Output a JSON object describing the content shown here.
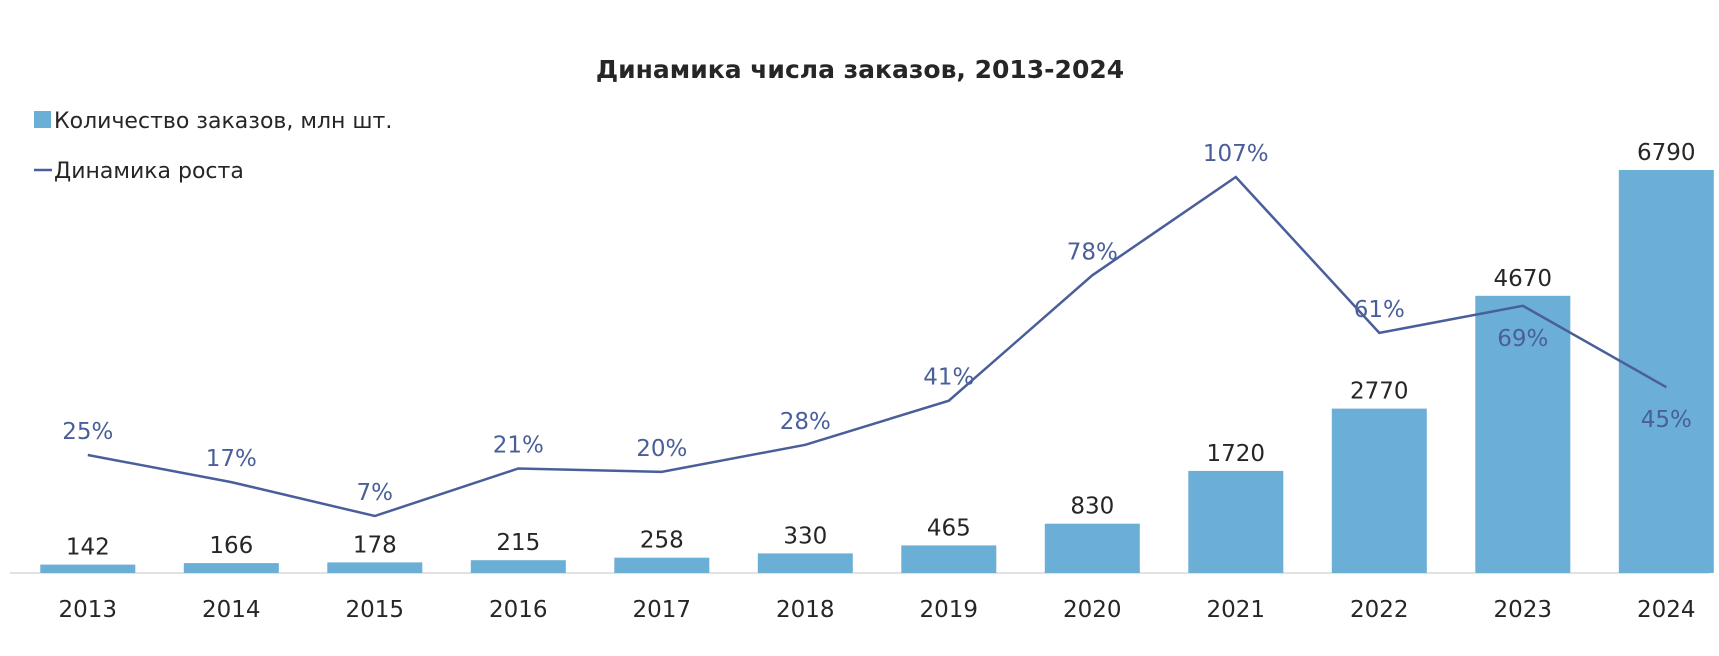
{
  "chart_data": {
    "type": "bar",
    "title": "Динамика числа заказов, 2013-2024",
    "xlabel": "",
    "ylabel": "",
    "grid": false,
    "legend_position": "top-left",
    "categories": [
      "2013",
      "2014",
      "2015",
      "2016",
      "2017",
      "2018",
      "2019",
      "2020",
      "2021",
      "2022",
      "2023",
      "2024"
    ],
    "bar_series": {
      "name": "Количество заказов, млн шт.",
      "values": [
        142,
        166,
        178,
        215,
        258,
        330,
        465,
        830,
        1720,
        2770,
        4670,
        6790
      ],
      "labels": [
        "142",
        "166",
        "178",
        "215",
        "258",
        "330",
        "465",
        "830",
        "1720",
        "2770",
        "4670",
        "6790"
      ],
      "color": "#6baed6",
      "ylim": [
        0,
        6790
      ]
    },
    "line_series": {
      "name": "Динамика роста",
      "values": [
        25,
        17,
        7,
        21,
        20,
        28,
        41,
        78,
        107,
        61,
        69,
        45
      ],
      "labels": [
        "25%",
        "17%",
        "7%",
        "21%",
        "20%",
        "28%",
        "41%",
        "78%",
        "107%",
        "61%",
        "69%",
        "45%"
      ],
      "unit": "%",
      "color": "#4a5f9a",
      "ylim": [
        -50,
        107
      ]
    },
    "axis_color": "#d9d9d9"
  }
}
